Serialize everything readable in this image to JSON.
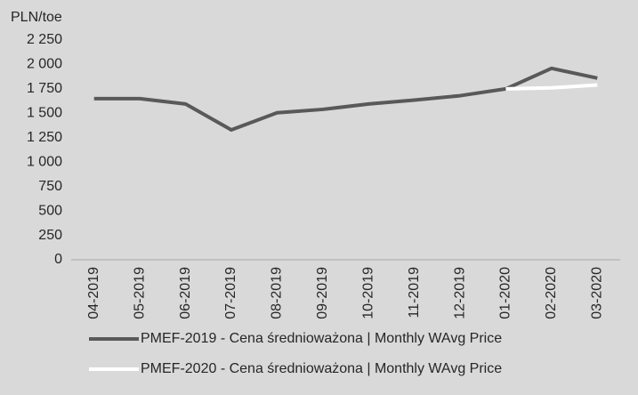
{
  "chart_data": {
    "type": "line",
    "ylabel": "PLN/toe",
    "categories": [
      "04-2019",
      "05-2019",
      "06-2019",
      "07-2019",
      "08-2019",
      "09-2019",
      "10-2019",
      "11-2019",
      "12-2019",
      "01-2020",
      "02-2020",
      "03-2020"
    ],
    "series": [
      {
        "name": "PMEF-2019  -  Cena średnioważona | Monthly WAvg Price",
        "color": "#595959",
        "values": [
          1650,
          1650,
          1595,
          1330,
          1505,
          1540,
          1595,
          1635,
          1680,
          1750,
          1960,
          1860
        ]
      },
      {
        "name": "PMEF-2020  -  Cena średnioważona | Monthly WAvg Price",
        "color": "#ffffff",
        "values": [
          null,
          null,
          null,
          null,
          null,
          null,
          null,
          null,
          null,
          1750,
          1760,
          1790
        ]
      }
    ],
    "ylim": [
      0,
      2250
    ],
    "yticks": [
      0,
      250,
      500,
      750,
      {
        "value": 1000,
        "label": "1 000"
      },
      {
        "value": 1250,
        "label": "1 250"
      },
      {
        "value": 1500,
        "label": "1 500"
      },
      {
        "value": 1750,
        "label": "1 750"
      },
      {
        "value": 2000,
        "label": "2 000"
      },
      {
        "value": 2250,
        "label": "2 250"
      }
    ],
    "grid": false,
    "legend": "bottom"
  }
}
